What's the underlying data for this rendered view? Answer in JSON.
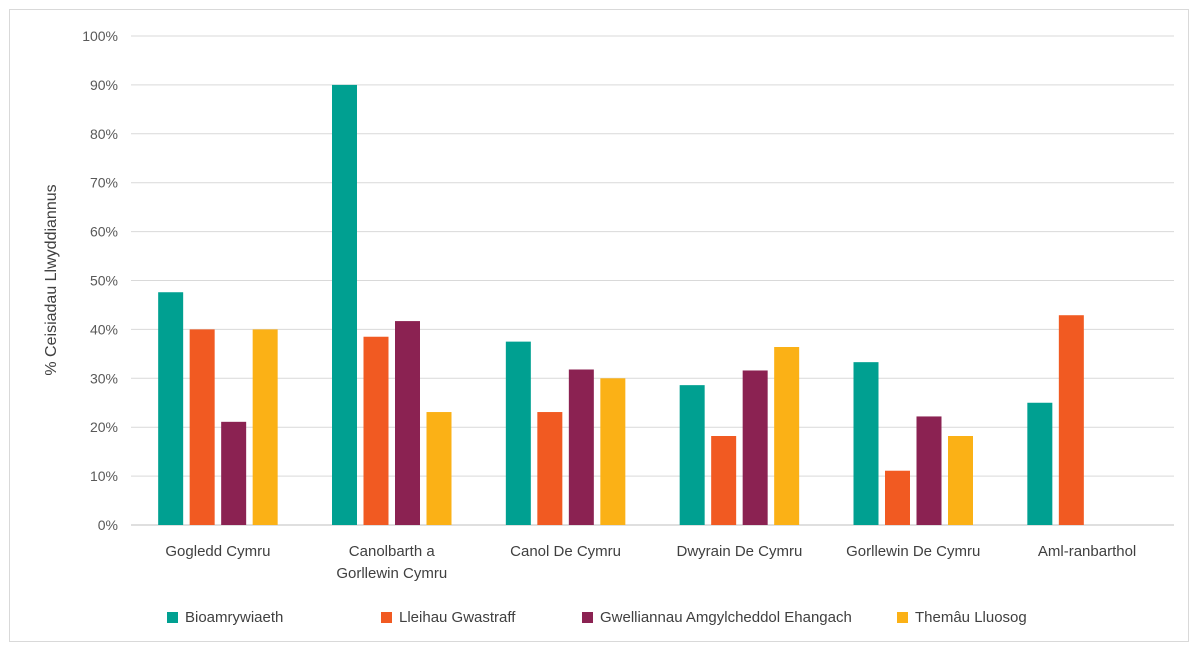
{
  "chart_data": {
    "type": "bar",
    "categories": [
      [
        "Gogledd Cymru"
      ],
      [
        "Canolbarth a",
        "Gorllewin Cymru"
      ],
      [
        "Canol De Cymru"
      ],
      [
        "Dwyrain De Cymru"
      ],
      [
        "Gorllewin De Cymru"
      ],
      [
        "Aml-ranbarthol"
      ]
    ],
    "series": [
      {
        "name": "Bioamrywiaeth",
        "color": "#00a091",
        "values": [
          47.6,
          90,
          37.5,
          28.6,
          33.3,
          25
        ]
      },
      {
        "name": "Lleihau Gwastraff",
        "color": "#f15a22",
        "values": [
          40,
          38.5,
          23.1,
          18.2,
          11.1,
          42.9
        ]
      },
      {
        "name": "Gwelliannau Amgylcheddol Ehangach",
        "color": "#8b2252",
        "values": [
          21.1,
          41.7,
          31.8,
          31.6,
          22.2,
          null
        ]
      },
      {
        "name": "Themâu Lluosog",
        "color": "#fbb116",
        "values": [
          40,
          23.1,
          30,
          36.4,
          18.2,
          null
        ]
      }
    ],
    "ylabel": "% Ceisiadau Llwyddiannus",
    "ylim": [
      0,
      100
    ],
    "yticks": [
      "0%",
      "10%",
      "20%",
      "30%",
      "40%",
      "50%",
      "60%",
      "70%",
      "80%",
      "90%",
      "100%"
    ],
    "grid": true,
    "legend": "bottom"
  }
}
